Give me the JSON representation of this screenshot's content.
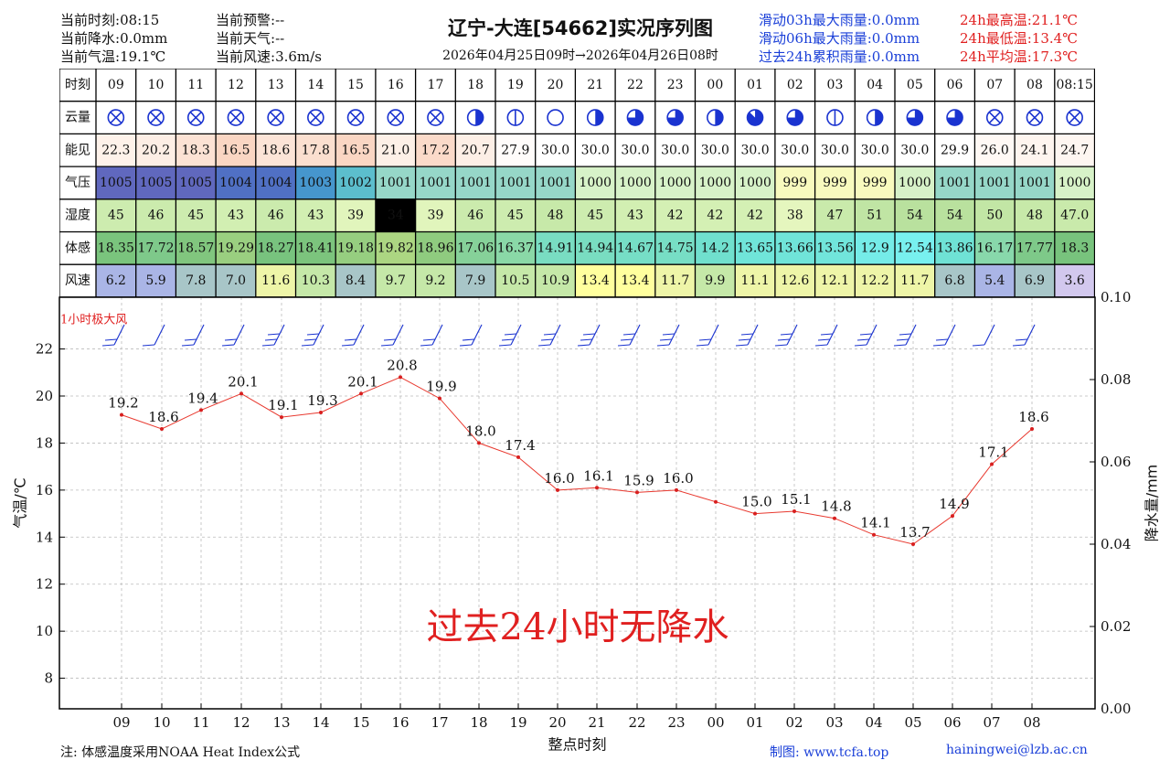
{
  "header": {
    "left": [
      {
        "label": "当前时刻:",
        "value": "08:15"
      },
      {
        "label": "当前降水:",
        "value": "0.0mm"
      },
      {
        "label": "当前气温:",
        "value": "19.1℃"
      }
    ],
    "mid": [
      {
        "label": "当前预警:",
        "value": "--"
      },
      {
        "label": "当前天气:",
        "value": "--"
      },
      {
        "label": "当前风速:",
        "value": "3.6m/s"
      }
    ],
    "title": "辽宁-大连[54662]实况序列图",
    "range": "2026年04月25日09时→2026年04月26日08时",
    "rain_stats": [
      "滑动03h最大雨量:0.0mm",
      "滑动06h最大雨量:0.0mm",
      "过去24h累积雨量:0.0mm"
    ],
    "temp_stats": [
      "24h最高温:21.1℃",
      "24h最低温:13.4℃",
      "24h平均温:17.3℃"
    ]
  },
  "table": {
    "row_labels": [
      "时刻",
      "云量",
      "能见",
      "气压",
      "湿度",
      "体感",
      "风速"
    ],
    "times": [
      "09",
      "10",
      "11",
      "12",
      "13",
      "14",
      "15",
      "16",
      "17",
      "18",
      "19",
      "20",
      "21",
      "22",
      "23",
      "00",
      "01",
      "02",
      "03",
      "04",
      "05",
      "06",
      "07",
      "08",
      "08:15"
    ],
    "cloud": [
      9,
      9,
      9,
      9,
      9,
      9,
      9,
      9,
      9,
      4,
      2,
      0,
      4,
      6,
      6,
      4,
      7,
      6,
      2,
      4,
      6,
      6,
      9,
      9,
      9
    ],
    "visibility": [
      "22.3",
      "20.2",
      "18.3",
      "16.5",
      "18.6",
      "17.8",
      "16.5",
      "21.0",
      "17.2",
      "20.7",
      "27.9",
      "30.0",
      "30.0",
      "30.0",
      "30.0",
      "30.0",
      "30.0",
      "30.0",
      "30.0",
      "30.0",
      "30.0",
      "29.9",
      "26.0",
      "24.1",
      "24.7"
    ],
    "pressure": [
      "1005",
      "1005",
      "1005",
      "1004",
      "1004",
      "1003",
      "1002",
      "1001",
      "1001",
      "1001",
      "1001",
      "1001",
      "1000",
      "1000",
      "1000",
      "1000",
      "1000",
      "999",
      "999",
      "999",
      "1000",
      "1001",
      "1001",
      "1001",
      "1000"
    ],
    "humidity": [
      "45",
      "46",
      "45",
      "43",
      "46",
      "43",
      "39",
      "34",
      "39",
      "46",
      "45",
      "48",
      "45",
      "43",
      "42",
      "42",
      "42",
      "38",
      "47",
      "51",
      "54",
      "54",
      "50",
      "48",
      "47.0"
    ],
    "feel": [
      "18.35",
      "17.72",
      "18.57",
      "19.29",
      "18.27",
      "18.41",
      "19.18",
      "19.82",
      "18.96",
      "17.06",
      "16.37",
      "14.91",
      "14.94",
      "14.67",
      "14.75",
      "14.2",
      "13.65",
      "13.66",
      "13.56",
      "12.9",
      "12.54",
      "13.86",
      "16.17",
      "17.77",
      "18.3"
    ],
    "wind": [
      "6.2",
      "5.9",
      "7.8",
      "7.0",
      "11.6",
      "10.3",
      "8.4",
      "9.7",
      "9.2",
      "7.9",
      "10.5",
      "10.9",
      "13.4",
      "13.4",
      "11.7",
      "9.9",
      "11.1",
      "12.6",
      "12.1",
      "12.2",
      "11.7",
      "6.8",
      "5.4",
      "6.9",
      "3.6"
    ]
  },
  "chart_data": {
    "type": "line",
    "x": [
      "09",
      "10",
      "11",
      "12",
      "13",
      "14",
      "15",
      "16",
      "17",
      "18",
      "19",
      "20",
      "21",
      "22",
      "23",
      "00",
      "01",
      "02",
      "03",
      "04",
      "05",
      "06",
      "07",
      "08"
    ],
    "series": [
      {
        "values": [
          19.2,
          18.6,
          19.4,
          20.1,
          19.1,
          19.3,
          20.1,
          20.8,
          19.9,
          18.0,
          17.4,
          16.0,
          16.1,
          15.9,
          16.0,
          15.5,
          15.0,
          15.1,
          14.8,
          14.1,
          13.7,
          14.9,
          17.1,
          18.6
        ],
        "point_labels": [
          "19.2",
          "18.6",
          "19.4",
          "20.1",
          "19.1",
          "19.3",
          "20.1",
          "20.8",
          "19.9",
          "18.0",
          "17.4",
          "16.0",
          "16.1",
          "15.9",
          "16.0",
          "",
          "15.0",
          "15.1",
          "14.8",
          "14.1",
          "13.7",
          "14.9",
          "17.1",
          "18.6"
        ]
      }
    ],
    "wind_barb_speeds": [
      6.2,
      5.9,
      7.8,
      7.0,
      11.6,
      10.3,
      8.4,
      9.7,
      9.2,
      7.9,
      10.5,
      10.9,
      13.4,
      13.4,
      11.7,
      9.9,
      11.1,
      12.6,
      12.1,
      12.2,
      11.7,
      6.8,
      5.4,
      6.9
    ],
    "wind_barb_label": "1小时极大风",
    "xlabel": "整点时刻",
    "ylabel": "气温/℃",
    "y2label": "降水量/mm",
    "ylim": [
      6.7,
      24.2
    ],
    "yticks": [
      8,
      10,
      12,
      14,
      16,
      18,
      20,
      22
    ],
    "y2lim": [
      0,
      0.1
    ],
    "y2ticks": [
      "0.00",
      "0.02",
      "0.04",
      "0.06",
      "0.08",
      "0.10"
    ],
    "no_precip_text": "过去24小时无降水",
    "grid": true,
    "line_color": "#e8382e"
  },
  "footer": {
    "note": "注: 体感温度采用NOAA Heat Index公式",
    "maker": "制图: www.tcfa.top",
    "email": "hainingwei@lzb.ac.cn"
  }
}
